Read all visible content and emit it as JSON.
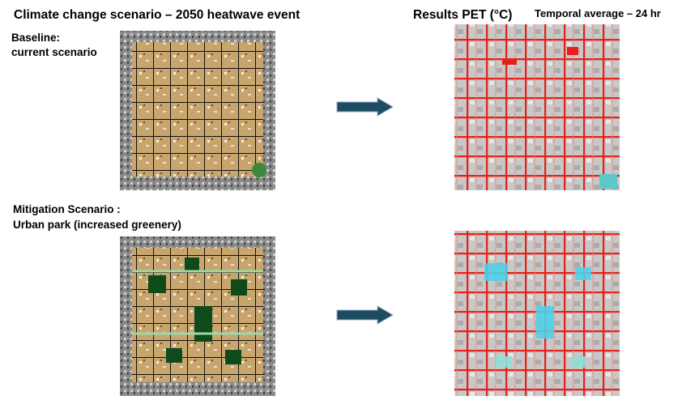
{
  "header": {
    "title": "Climate change scenario – 2050 heatwave event",
    "results_title": "Results PET (°C)",
    "results_subtitle": "Temporal average – 24 hr"
  },
  "panels": [
    {
      "label_lines": [
        "Baseline:",
        "current scenario"
      ]
    },
    {
      "label_lines": [
        "Mitigation Scenario :",
        "Urban park (increased greenery)"
      ]
    }
  ]
}
